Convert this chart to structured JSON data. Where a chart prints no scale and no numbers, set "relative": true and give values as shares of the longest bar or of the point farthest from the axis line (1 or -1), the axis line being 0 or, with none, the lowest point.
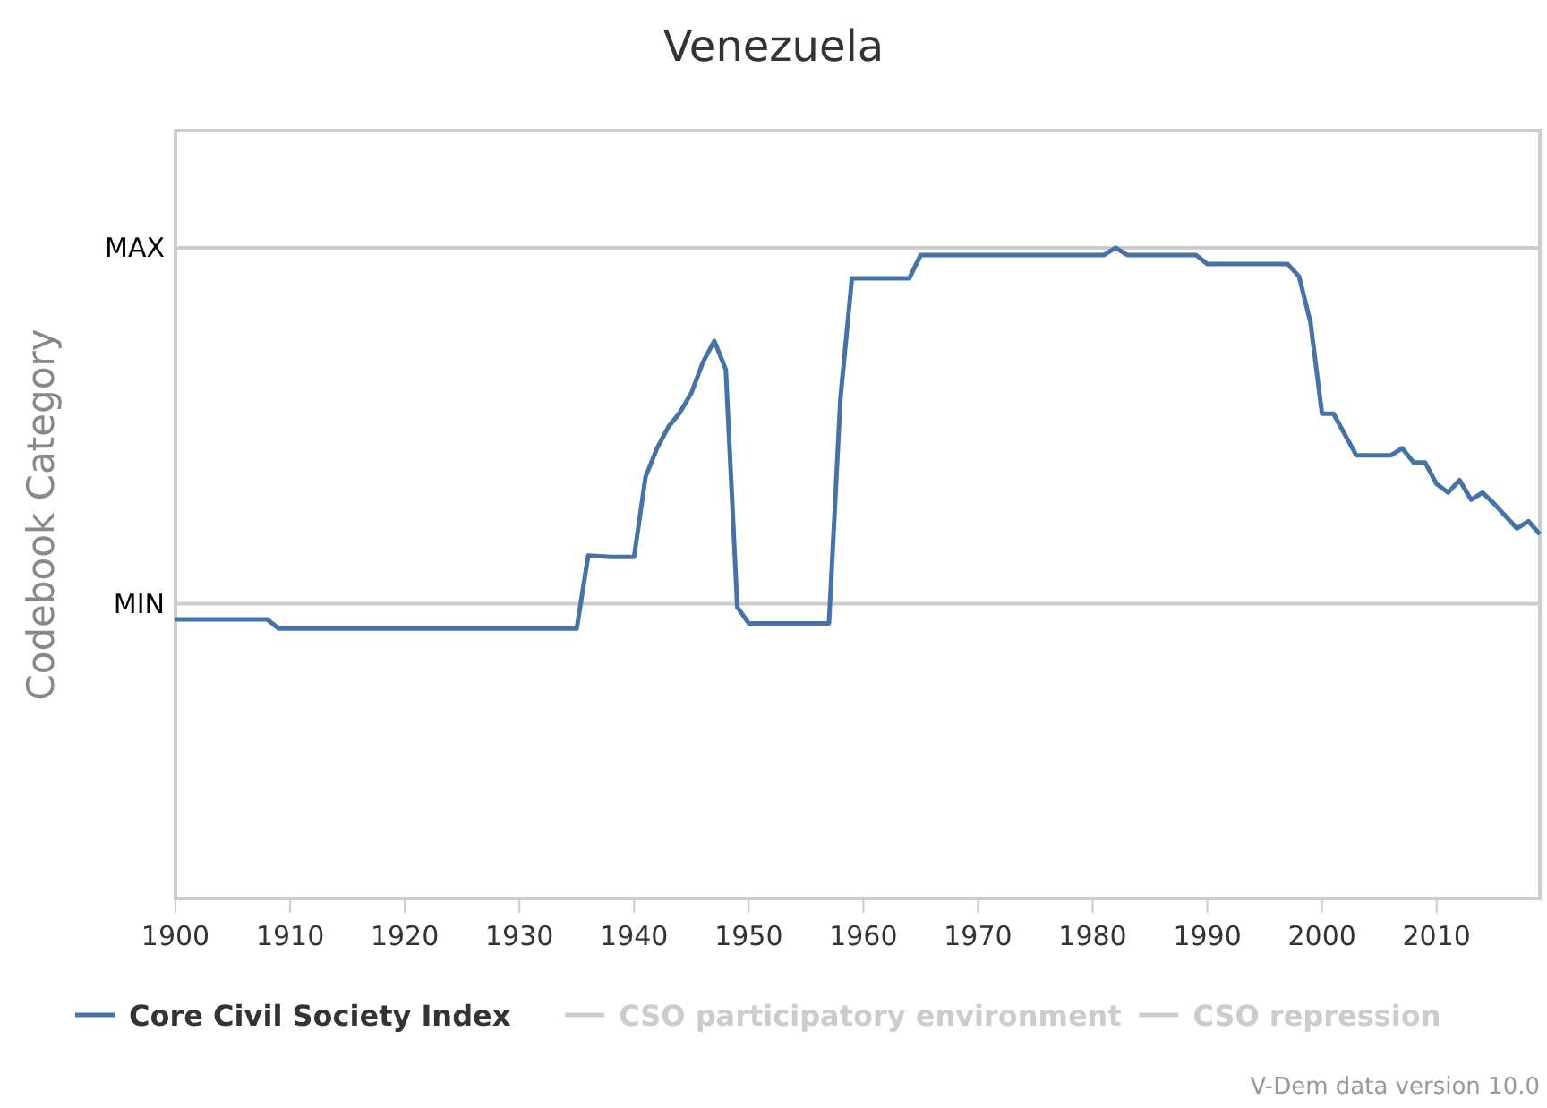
{
  "chart_data": {
    "type": "line",
    "title": "Venezuela",
    "ylabel": "Codebook Category",
    "relative": true,
    "x": [
      1900,
      1908,
      1909,
      1935,
      1936,
      1938,
      1940,
      1941,
      1942,
      1943,
      1944,
      1945,
      1946,
      1947,
      1948,
      1949,
      1950,
      1957,
      1958,
      1959,
      1964,
      1965,
      1981,
      1982,
      1983,
      1989,
      1990,
      1997,
      1998,
      1999,
      2000,
      2001,
      2003,
      2006,
      2007,
      2008,
      2009,
      2010,
      2011,
      2012,
      2013,
      2014,
      2015,
      2016,
      2017,
      2018,
      2019
    ],
    "series": [
      {
        "name": "Core Civil Society Index",
        "color": "#4572a7",
        "values": [
          0.429,
          0.429,
          0.415,
          0.415,
          0.527,
          0.525,
          0.525,
          0.648,
          0.692,
          0.725,
          0.747,
          0.777,
          0.824,
          0.857,
          0.813,
          0.448,
          0.423,
          0.423,
          0.769,
          0.953,
          0.953,
          0.989,
          0.989,
          1.0,
          0.989,
          0.989,
          0.975,
          0.975,
          0.956,
          0.885,
          0.745,
          0.745,
          0.681,
          0.681,
          0.692,
          0.67,
          0.67,
          0.637,
          0.624,
          0.643,
          0.613,
          0.624,
          0.607,
          0.588,
          0.569,
          0.58,
          0.56
        ]
      },
      {
        "name": "CSO participatory environment",
        "color": "#cccccc",
        "values": [
          null,
          null,
          null,
          null,
          null,
          null,
          null,
          null,
          null,
          null,
          null,
          null,
          null,
          null,
          null,
          null,
          null,
          null,
          null,
          null,
          null,
          null,
          null,
          null,
          null,
          null,
          null,
          null,
          null,
          null,
          null,
          null,
          null,
          null,
          null,
          null,
          null,
          null,
          null,
          null,
          null,
          null,
          null,
          null,
          null,
          null,
          null
        ]
      },
      {
        "name": "CSO repression",
        "color": "#cccccc",
        "values": [
          null,
          null,
          null,
          null,
          null,
          null,
          null,
          null,
          null,
          null,
          null,
          null,
          null,
          null,
          null,
          null,
          null,
          null,
          null,
          null,
          null,
          null,
          null,
          null,
          null,
          null,
          null,
          null,
          null,
          null,
          null,
          null,
          null,
          null,
          null,
          null,
          null,
          null,
          null,
          null,
          null,
          null,
          null,
          null,
          null,
          null,
          null
        ]
      }
    ],
    "xlim": [
      1900,
      2019
    ],
    "xticks": [
      1900,
      1910,
      1920,
      1930,
      1940,
      1950,
      1960,
      1970,
      1980,
      1990,
      2000,
      2010
    ],
    "ref_lines": [
      {
        "axis": "y",
        "value": 0.453,
        "label": "MIN",
        "color": "#cccccc"
      },
      {
        "axis": "y",
        "value": 1.0,
        "label": "MAX",
        "color": "#cccccc"
      }
    ],
    "grid": false,
    "legend": "bottom",
    "line_style": "solid",
    "marker": "none",
    "annotations": [
      "V-Dem data version 10.0"
    ]
  }
}
